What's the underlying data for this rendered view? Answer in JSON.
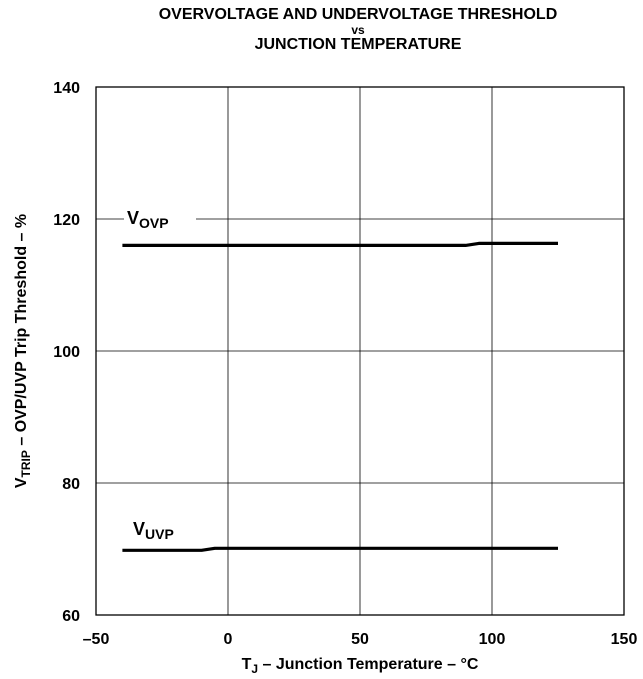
{
  "chart_data": {
    "type": "line",
    "title": [
      "OVERVOLTAGE AND UNDERVOLTAGE THRESHOLD",
      "vs",
      "JUNCTION TEMPERATURE"
    ],
    "xlabel": {
      "main": "T",
      "sub": "J",
      "rest": " – Junction Temperature – °C"
    },
    "ylabel": {
      "main": "V",
      "sub": "TRIP",
      "rest": " – OVP/UVP Trip Threshold – %"
    },
    "xlim": [
      -50,
      150
    ],
    "ylim": [
      60,
      140
    ],
    "xticks": [
      -50,
      0,
      50,
      100,
      150
    ],
    "yticks": [
      60,
      80,
      100,
      120,
      140
    ],
    "xtick_labels": [
      "–50",
      "0",
      "50",
      "100",
      "150"
    ],
    "ytick_labels": [
      "60",
      "80",
      "100",
      "120",
      "140"
    ],
    "grid": true,
    "series": [
      {
        "name": "V",
        "name_sub": "OVP",
        "x": [
          -40,
          -20,
          0,
          20,
          40,
          60,
          80,
          90,
          95,
          100,
          125
        ],
        "y": [
          116,
          116,
          116,
          116,
          116,
          116,
          116,
          116,
          116.3,
          116.3,
          116.3
        ]
      },
      {
        "name": "V",
        "name_sub": "UVP",
        "x": [
          -40,
          -20,
          -10,
          -5,
          0,
          25,
          50,
          75,
          100,
          125
        ],
        "y": [
          69.8,
          69.8,
          69.8,
          70.1,
          70.1,
          70.1,
          70.1,
          70.1,
          70.1,
          70.1
        ]
      }
    ]
  }
}
